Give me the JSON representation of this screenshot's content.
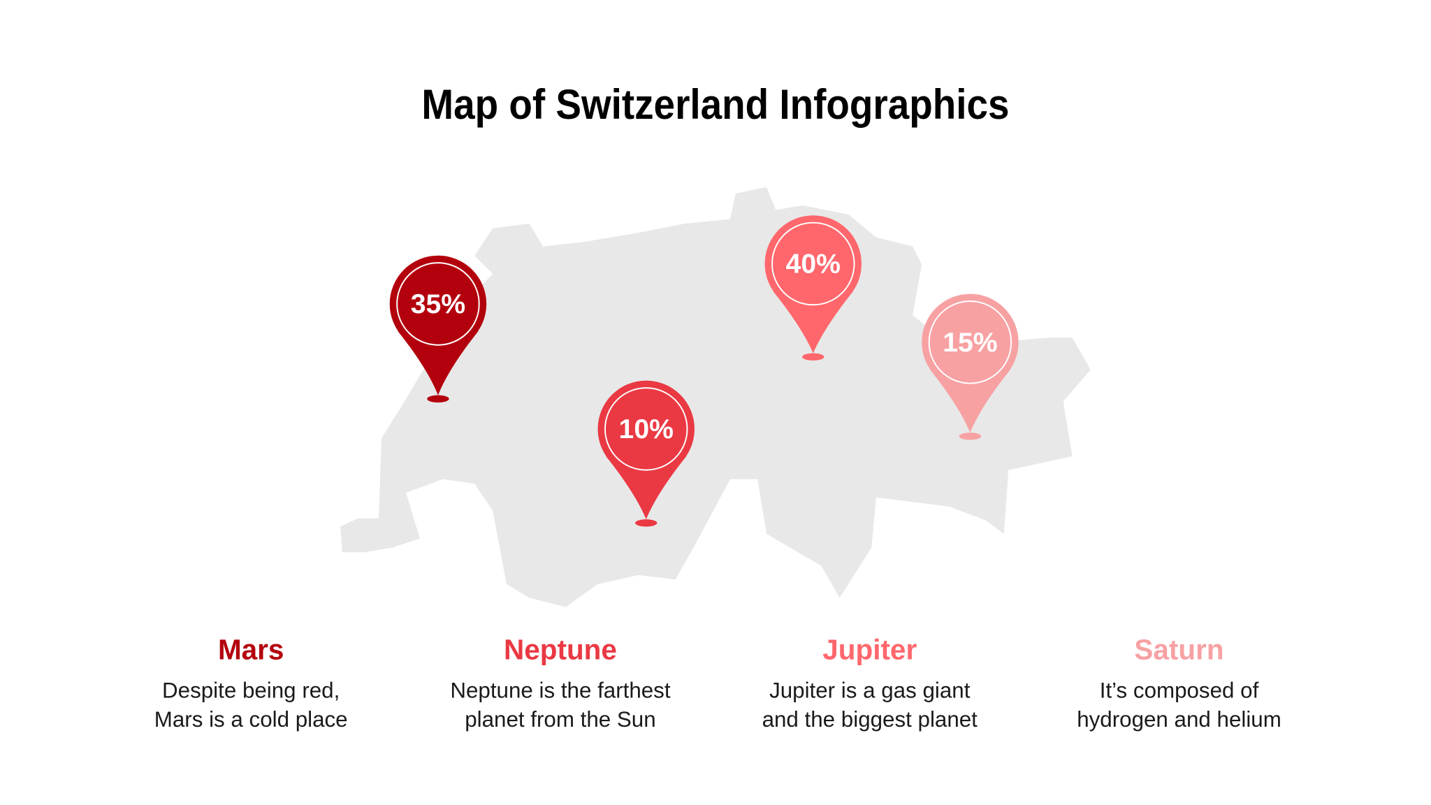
{
  "title": "Map of Switzerland Infographics",
  "pins": [
    {
      "label": "35%",
      "color": "#b3000d"
    },
    {
      "label": "10%",
      "color": "#ea3943"
    },
    {
      "label": "40%",
      "color": "#ff676c"
    },
    {
      "label": "15%",
      "color": "#f7a1a3"
    }
  ],
  "items": [
    {
      "name": "Mars",
      "lines": [
        "Despite being red,",
        "Mars is a cold place"
      ]
    },
    {
      "name": "Neptune",
      "lines": [
        "Neptune is the farthest",
        "planet from the Sun"
      ]
    },
    {
      "name": "Jupiter",
      "lines": [
        "Jupiter is a gas giant",
        "and the biggest planet"
      ]
    },
    {
      "name": "Saturn",
      "lines": [
        "It’s composed of",
        "hydrogen and helium"
      ]
    }
  ]
}
